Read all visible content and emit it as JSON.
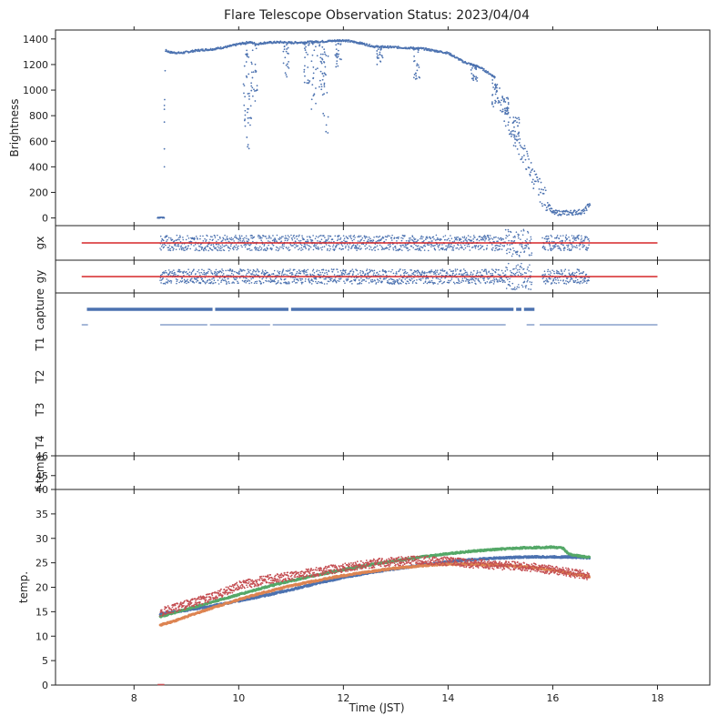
{
  "title": "Flare Telescope Observation Status: 2023/04/04",
  "xlabel": "Time (JST)",
  "colors": {
    "blue": "#4c72b0",
    "orange": "#dd8452",
    "green": "#55a868",
    "red": "#c44e52",
    "redline": "#d62728",
    "axis": "#222222"
  },
  "chart_data": {
    "type": "scatter",
    "xlim": [
      6.5,
      19.0
    ],
    "xticks": [
      "8",
      "10",
      "12",
      "14",
      "16",
      "18"
    ],
    "brightness": {
      "ylabel": "Brightness",
      "ylim": [
        -60,
        1470
      ],
      "yticks": [
        "0",
        "200",
        "400",
        "600",
        "800",
        "1000",
        "1200",
        "1400"
      ],
      "x": [
        8.45,
        8.55,
        8.6,
        8.7,
        8.9,
        9.2,
        9.5,
        9.8,
        10.0,
        10.2,
        10.35,
        10.5,
        10.8,
        11.0,
        11.3,
        11.6,
        12.0,
        12.3,
        12.6,
        13.0,
        13.5,
        14.0,
        14.3,
        14.6,
        14.9,
        15.0,
        15.2,
        15.5,
        15.7,
        15.9,
        16.0,
        16.3,
        16.6,
        16.7
      ],
      "y": [
        0,
        20,
        1310,
        1295,
        1290,
        1310,
        1320,
        1340,
        1360,
        1375,
        1360,
        1370,
        1375,
        1370,
        1375,
        1380,
        1390,
        1370,
        1340,
        1335,
        1325,
        1290,
        1220,
        1180,
        1100,
        900,
        700,
        450,
        250,
        120,
        40,
        40,
        50,
        110
      ],
      "dips": [
        {
          "x": 10.15,
          "y": 700
        },
        {
          "x": 10.2,
          "y": 530
        },
        {
          "x": 10.3,
          "y": 900
        },
        {
          "x": 10.9,
          "y": 1100
        },
        {
          "x": 11.3,
          "y": 1050
        },
        {
          "x": 11.45,
          "y": 800
        },
        {
          "x": 11.6,
          "y": 1000
        },
        {
          "x": 11.65,
          "y": 660
        },
        {
          "x": 11.9,
          "y": 1180
        },
        {
          "x": 12.7,
          "y": 1200
        },
        {
          "x": 13.4,
          "y": 1080
        },
        {
          "x": 14.5,
          "y": 1060
        },
        {
          "x": 14.9,
          "y": 870
        },
        {
          "x": 15.1,
          "y": 950
        },
        {
          "x": 15.3,
          "y": 820
        }
      ]
    },
    "gx": {
      "ylabel": "gx",
      "ylim": [
        -1,
        1
      ],
      "refline": 0,
      "spread": 0.45,
      "xrange": [
        8.5,
        16.7
      ]
    },
    "gy": {
      "ylabel": "gy",
      "ylim": [
        -1,
        1
      ],
      "refline": 0,
      "spread": 0.45,
      "xrange": [
        8.5,
        16.7
      ]
    },
    "status": {
      "labels": [
        "capture",
        "T1",
        "T2",
        "T3",
        "T4"
      ],
      "capture_segments": [
        [
          7.1,
          9.5
        ],
        [
          9.55,
          10.95
        ],
        [
          11.0,
          15.25
        ],
        [
          15.3,
          15.4
        ],
        [
          15.45,
          15.65
        ]
      ],
      "t1_segments": [
        [
          7.0,
          7.12
        ],
        [
          8.5,
          9.4
        ],
        [
          9.45,
          10.6
        ],
        [
          10.65,
          15.1
        ],
        [
          15.5,
          15.65
        ],
        [
          15.75,
          18.0
        ]
      ]
    },
    "ftemp": {
      "ylabel": "f-temp",
      "ylim": [
        44.3,
        46
      ],
      "yticks": [
        "45",
        "46"
      ]
    },
    "temp": {
      "ylabel": "temp.",
      "ylim": [
        0,
        40
      ],
      "yticks": [
        "0",
        "5",
        "10",
        "15",
        "20",
        "25",
        "30",
        "35",
        "40"
      ],
      "series": [
        {
          "color": "blue",
          "x": [
            8.5,
            9.0,
            9.5,
            10.0,
            10.5,
            11.0,
            11.5,
            12.0,
            12.5,
            13.0,
            13.5,
            14.0,
            14.5,
            15.0,
            15.5,
            16.0,
            16.3,
            16.5,
            16.7
          ],
          "y": [
            14.5,
            15.3,
            16.2,
            17.2,
            18.3,
            19.5,
            20.8,
            22.0,
            23.0,
            23.8,
            24.5,
            25.2,
            25.7,
            26.0,
            26.2,
            26.2,
            26.2,
            26.1,
            26.0
          ]
        },
        {
          "color": "green",
          "x": [
            8.5,
            9.0,
            9.5,
            10.0,
            10.5,
            11.0,
            11.5,
            12.0,
            12.5,
            13.0,
            13.5,
            14.0,
            14.5,
            15.0,
            15.5,
            16.0,
            16.2,
            16.3,
            16.5,
            16.7
          ],
          "y": [
            14.0,
            15.5,
            17.0,
            18.5,
            20.0,
            21.3,
            22.5,
            23.6,
            24.6,
            25.4,
            26.2,
            26.9,
            27.4,
            27.8,
            28.1,
            28.2,
            28.0,
            26.8,
            26.4,
            26.1
          ]
        },
        {
          "color": "orange",
          "x": [
            8.5,
            8.8,
            9.0,
            9.5,
            10.0,
            10.5,
            11.0,
            11.5,
            12.0,
            12.5,
            13.0,
            13.5,
            14.0,
            14.5,
            15.0,
            15.5,
            16.0,
            16.5,
            16.7
          ],
          "y": [
            12.3,
            13.2,
            14.0,
            15.8,
            17.5,
            19.0,
            20.3,
            21.4,
            22.4,
            23.2,
            23.9,
            24.4,
            24.7,
            24.7,
            24.5,
            24.2,
            23.5,
            22.5,
            22.2
          ]
        },
        {
          "color": "red",
          "x": [
            8.5,
            9.0,
            9.5,
            10.0,
            10.5,
            11.0,
            11.5,
            12.0,
            12.5,
            13.0,
            13.5,
            14.0,
            14.5,
            15.0,
            15.5,
            16.0,
            16.5,
            16.7
          ],
          "y": [
            14.8,
            16.5,
            18.0,
            20.3,
            21.5,
            22.3,
            23.2,
            24.0,
            24.8,
            25.3,
            25.5,
            25.3,
            24.8,
            24.5,
            24.2,
            23.5,
            22.7,
            22.3
          ],
          "noise": 0.9
        }
      ]
    }
  }
}
